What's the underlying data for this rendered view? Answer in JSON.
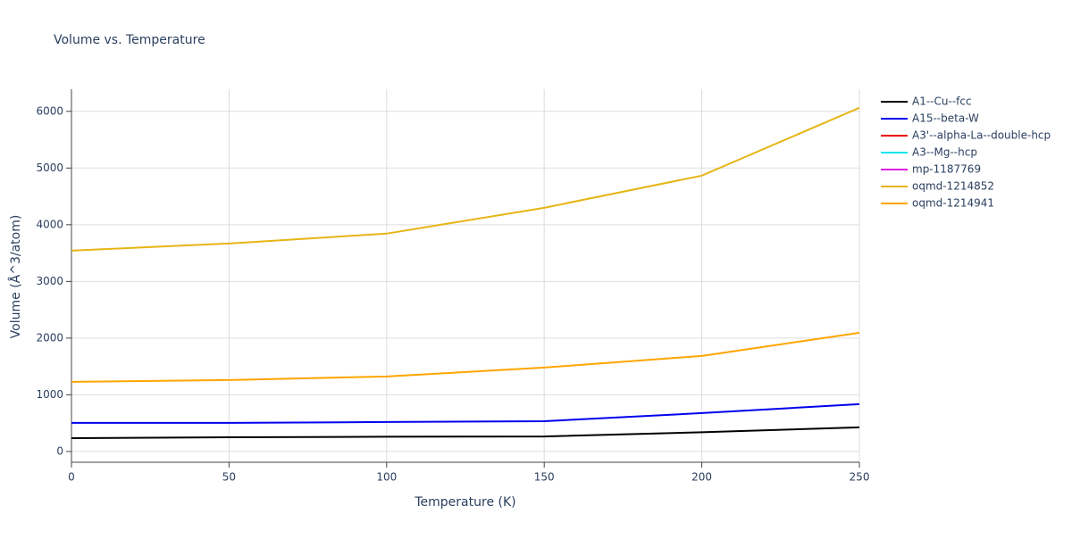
{
  "chart_data": {
    "type": "line",
    "title": "Volume vs. Temperature",
    "x_label": "Temperature (K)",
    "y_label": "Volume (Å^3/atom)",
    "x": [
      0,
      50,
      100,
      150,
      200,
      250
    ],
    "series": [
      {
        "name": "A1--Cu--fcc",
        "color": "#000000",
        "values": [
          236,
          250,
          260,
          265,
          340,
          425
        ]
      },
      {
        "name": "A15--beta-W",
        "color": "#0000ee",
        "values": [
          504,
          504,
          520,
          535,
          677,
          835
        ]
      },
      {
        "name": "A3'--alpha-La--double-hcp",
        "color": "#ee0000",
        "values": [
          null,
          null,
          null,
          null,
          null,
          null
        ]
      },
      {
        "name": "A3--Mg--hcp",
        "color": "#00e5ee",
        "values": [
          null,
          null,
          null,
          null,
          null,
          null
        ]
      },
      {
        "name": "mp-1187769",
        "color": "#e020e0",
        "values": [
          null,
          null,
          null,
          null,
          null,
          null
        ]
      },
      {
        "name": "oqmd-1214852",
        "color": "#e6b515",
        "values": [
          3543,
          3669,
          3843,
          4299,
          4866,
          6063
        ]
      },
      {
        "name": "oqmd-1214941",
        "color": "#ffa500",
        "values": [
          1228,
          1260,
          1323,
          1480,
          1685,
          2094
        ]
      }
    ],
    "xlim": [
      0,
      250
    ],
    "xticks": [
      0,
      50,
      100,
      150,
      200,
      250
    ],
    "ylim": [
      -190,
      6390
    ],
    "yticks": [
      0,
      1000,
      2000,
      3000,
      4000,
      5000,
      6000
    ],
    "grid": true,
    "legend": "right"
  }
}
